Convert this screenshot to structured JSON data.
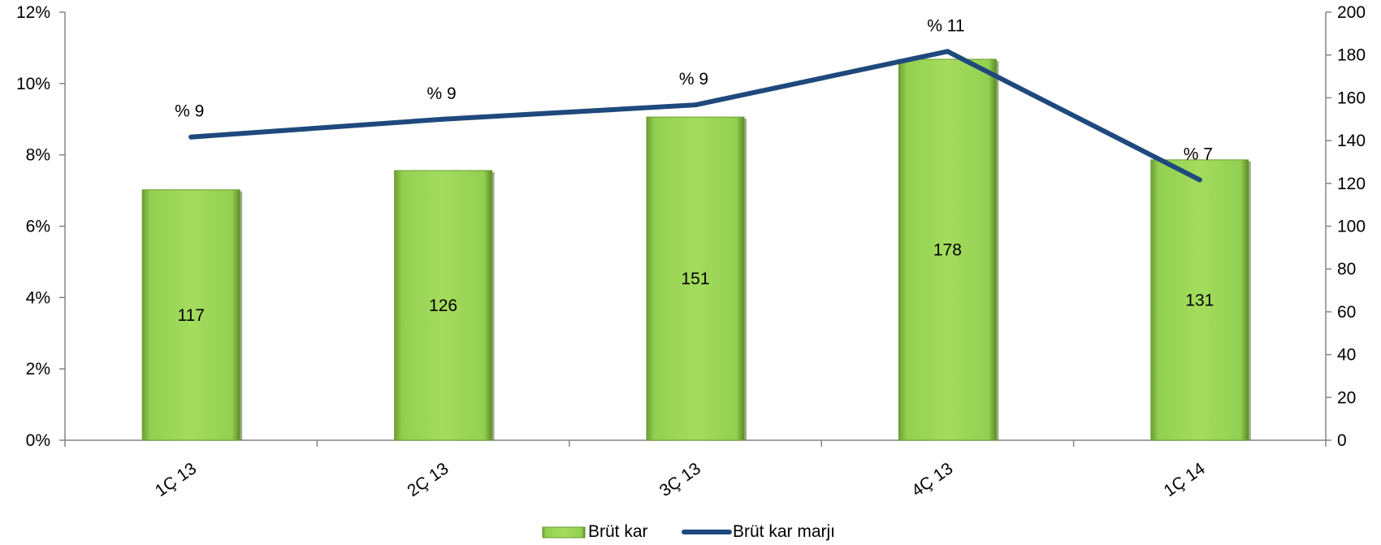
{
  "chart_data": {
    "type": "bar+line",
    "categories": [
      "1Ç 13",
      "2Ç 13",
      "3Ç 13",
      "4Ç 13",
      "1Ç 14"
    ],
    "series": [
      {
        "name": "Brüt kar",
        "type": "bar",
        "axis": "right",
        "values": [
          117,
          126,
          151,
          178,
          131
        ],
        "labels": [
          "117",
          "126",
          "151",
          "178",
          "131"
        ],
        "color": "#92d050"
      },
      {
        "name": "Brüt kar marjı",
        "type": "line",
        "axis": "left",
        "values": [
          0.085,
          0.09,
          0.094,
          0.109,
          0.073
        ],
        "labels": [
          "% 9",
          "% 9",
          "% 9",
          "% 11",
          "% 7"
        ],
        "color": "#1f497d"
      }
    ],
    "left_axis": {
      "ylim": [
        0,
        0.12
      ],
      "ticks": [
        "0%",
        "2%",
        "4%",
        "6%",
        "8%",
        "10%",
        "12%"
      ]
    },
    "right_axis": {
      "ylim": [
        0,
        200
      ],
      "ticks": [
        "0",
        "20",
        "40",
        "60",
        "80",
        "100",
        "120",
        "140",
        "160",
        "180",
        "200"
      ]
    },
    "grid": false,
    "legend": "bottom-center"
  }
}
